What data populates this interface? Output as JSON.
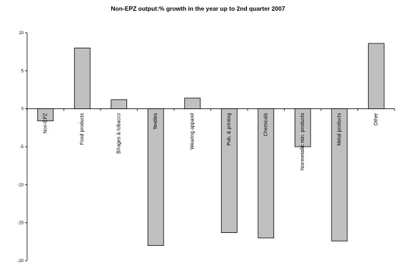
{
  "chart_data": {
    "type": "bar",
    "title": "Non-EPZ output:% growth in the year up to 2nd quarter 2007",
    "xlabel": "",
    "ylabel": "",
    "categories": [
      "Non-EPZ",
      "Food products",
      "B/rages & tobacco",
      "Textiles",
      "Wearing apparel",
      "Pub. & printing",
      "Chemicals",
      "Nonmetallic min. products",
      "Metal products",
      "Other"
    ],
    "values": [
      -1.6,
      8.0,
      1.2,
      -18.0,
      1.4,
      -16.3,
      -17.0,
      -5.0,
      -17.4,
      8.6
    ],
    "ylim": [
      -20,
      10
    ],
    "yticks": [
      -20,
      -15,
      -10,
      -5,
      0,
      5,
      10
    ],
    "grid": false,
    "legend": "none",
    "bar_color": "#c0c0c0",
    "bar_stroke": "#000000"
  }
}
